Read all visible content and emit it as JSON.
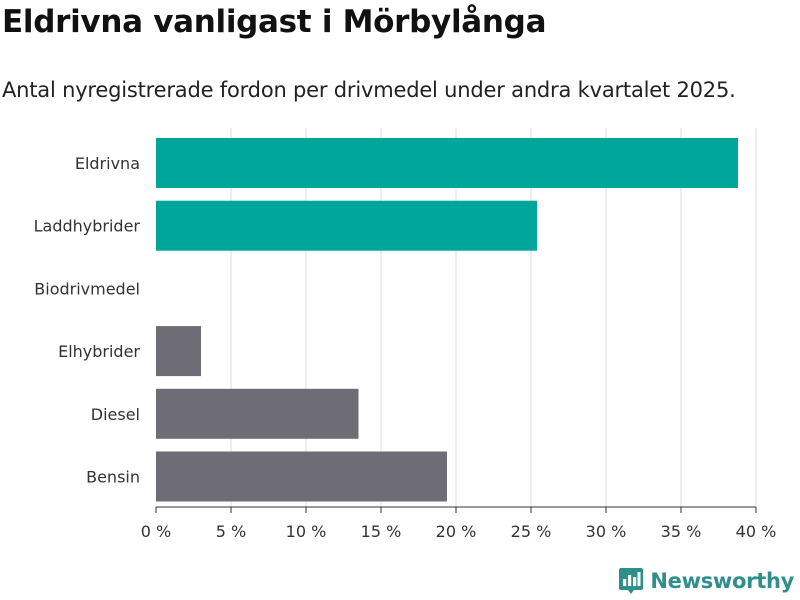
{
  "header": {
    "title": "Eldrivna vanligast i Mörbylånga",
    "subtitle": "Antal nyregistrerade fordon per drivmedel under andra kvartalet 2025."
  },
  "brand": {
    "logo_text": "Newsworthy",
    "icon": "bar-chart-logo-icon",
    "color": "#2f8f8b"
  },
  "colors": {
    "highlight": "#00a69a",
    "default": "#6e6c74",
    "grid": "#dddddd",
    "axis": "#333333"
  },
  "chart_data": {
    "type": "bar",
    "orientation": "horizontal",
    "categories": [
      "Eldrivna",
      "Laddhybrider",
      "Biodrivmedel",
      "Elhybrider",
      "Diesel",
      "Bensin"
    ],
    "values": [
      38.8,
      25.4,
      0,
      3.0,
      13.5,
      19.4
    ],
    "highlighted": [
      true,
      true,
      false,
      false,
      false,
      false
    ],
    "xlim": [
      0,
      40
    ],
    "xticks": [
      0,
      5,
      10,
      15,
      20,
      25,
      30,
      35,
      40
    ],
    "tick_labels": [
      "0 %",
      "5 %",
      "10 %",
      "15 %",
      "20 %",
      "25 %",
      "30 %",
      "35 %",
      "40 %"
    ],
    "grid": true,
    "legend": "none"
  }
}
